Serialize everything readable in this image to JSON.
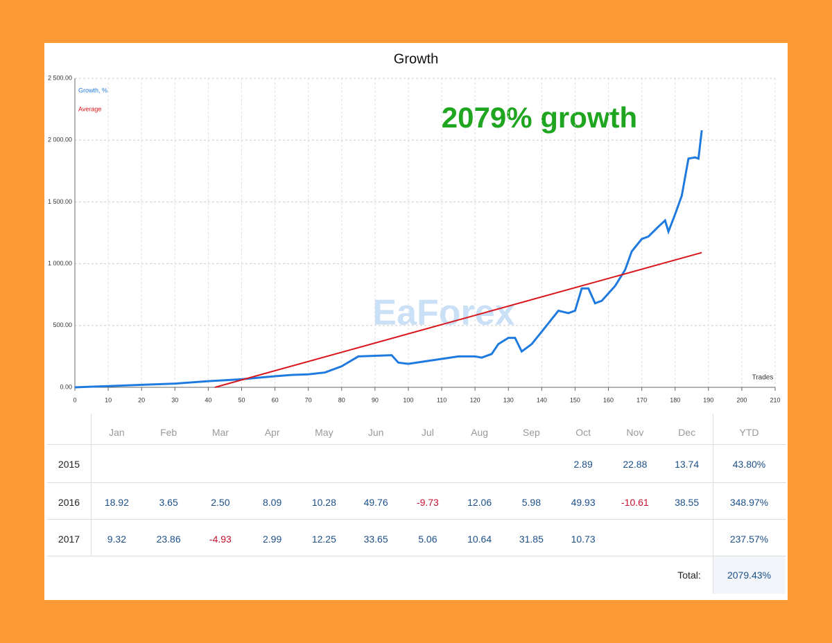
{
  "chart_data": {
    "type": "line",
    "title": "Growth",
    "x_label": "Trades",
    "annotation": "2079% growth",
    "watermark": "EaForex",
    "xlim": [
      0,
      210
    ],
    "xticks": [
      0,
      10,
      20,
      30,
      40,
      50,
      60,
      70,
      80,
      90,
      100,
      110,
      120,
      130,
      140,
      150,
      160,
      170,
      180,
      190,
      200,
      210
    ],
    "ylim": [
      0,
      2500
    ],
    "yticks": [
      {
        "value": 0,
        "label": "0.00"
      },
      {
        "value": 500,
        "label": "500.00"
      },
      {
        "value": 1000,
        "label": "1 000.00"
      },
      {
        "value": 1500,
        "label": "1 500.00"
      },
      {
        "value": 2000,
        "label": "2 000.00"
      },
      {
        "value": 2500,
        "label": "2 500.00"
      }
    ],
    "grid": true,
    "series": [
      {
        "name": "Growth, %",
        "color": "#1f7ae0",
        "x": [
          0,
          10,
          20,
          30,
          40,
          50,
          60,
          65,
          70,
          75,
          80,
          85,
          90,
          95,
          97,
          100,
          105,
          110,
          115,
          120,
          122,
          125,
          127,
          130,
          132,
          134,
          137,
          140,
          145,
          148,
          150,
          152,
          154,
          156,
          158,
          162,
          165,
          167,
          170,
          172,
          175,
          177,
          178,
          180,
          182,
          184,
          186,
          187,
          188
        ],
        "values": [
          0,
          10,
          20,
          30,
          50,
          65,
          90,
          100,
          105,
          120,
          170,
          250,
          255,
          260,
          200,
          190,
          210,
          230,
          250,
          250,
          240,
          270,
          350,
          400,
          400,
          290,
          350,
          450,
          620,
          600,
          620,
          800,
          800,
          680,
          700,
          820,
          950,
          1100,
          1200,
          1220,
          1300,
          1350,
          1260,
          1400,
          1550,
          1850,
          1860,
          1850,
          2079
        ]
      },
      {
        "name": "Average",
        "color": "#d9161c",
        "x": [
          42,
          188
        ],
        "values": [
          0,
          1090
        ]
      }
    ]
  },
  "table": {
    "header": [
      "Jan",
      "Feb",
      "Mar",
      "Apr",
      "May",
      "Jun",
      "Jul",
      "Aug",
      "Sep",
      "Oct",
      "Nov",
      "Dec",
      "YTD"
    ],
    "rows": [
      {
        "year": "2015",
        "cells": [
          null,
          null,
          null,
          null,
          null,
          null,
          null,
          null,
          null,
          "2.89",
          "22.88",
          "13.74"
        ],
        "ytd": "43.80%"
      },
      {
        "year": "2016",
        "cells": [
          "18.92",
          "3.65",
          "2.50",
          "8.09",
          "10.28",
          "49.76",
          "-9.73",
          "12.06",
          "5.98",
          "49.93",
          "-10.61",
          "38.55"
        ],
        "ytd": "348.97%"
      },
      {
        "year": "2017",
        "cells": [
          "9.32",
          "23.86",
          "-4.93",
          "2.99",
          "12.25",
          "33.65",
          "5.06",
          "10.64",
          "31.85",
          "10.73",
          null,
          null
        ],
        "ytd": "237.57%"
      }
    ],
    "total_label": "Total:",
    "total": "2079.43%"
  }
}
